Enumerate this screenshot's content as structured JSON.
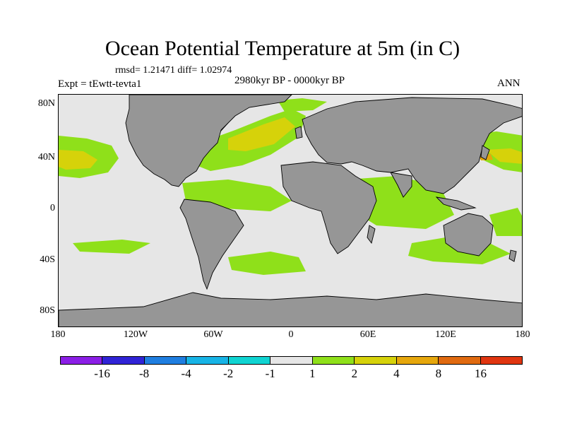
{
  "title": "Ocean Potential Temperature at 5m (in C)",
  "stats": "rmsd= 1.21471 diff= 1.02974",
  "period": "2980kyr BP - 0000kyr BP",
  "experiment": "Expt = tEwtt-tevta1",
  "season": "ANN",
  "lat_ticks": [
    "80N",
    "40N",
    "0",
    "40S",
    "80S"
  ],
  "lon_ticks": [
    "180",
    "120W",
    "60W",
    "0",
    "60E",
    "120E",
    "180"
  ],
  "colorbar": {
    "colors": [
      "#8b1ee6",
      "#3023d6",
      "#1f7ee0",
      "#17b4e6",
      "#10d4d2",
      "#e6e6e6",
      "#8fe01a",
      "#d6d20a",
      "#e6a70c",
      "#e06a10",
      "#e03510"
    ],
    "labels": [
      "-16",
      "-8",
      "-4",
      "-2",
      "-1",
      "1",
      "2",
      "4",
      "8",
      "16"
    ]
  },
  "map_colors": {
    "ocean_neutral": "#e6e6e6",
    "land": "#969696",
    "warm_2": "#8fe01a",
    "warm_4": "#d6d20a",
    "warm_8": "#e6a70c",
    "cool_1": "#10d4d2"
  }
}
